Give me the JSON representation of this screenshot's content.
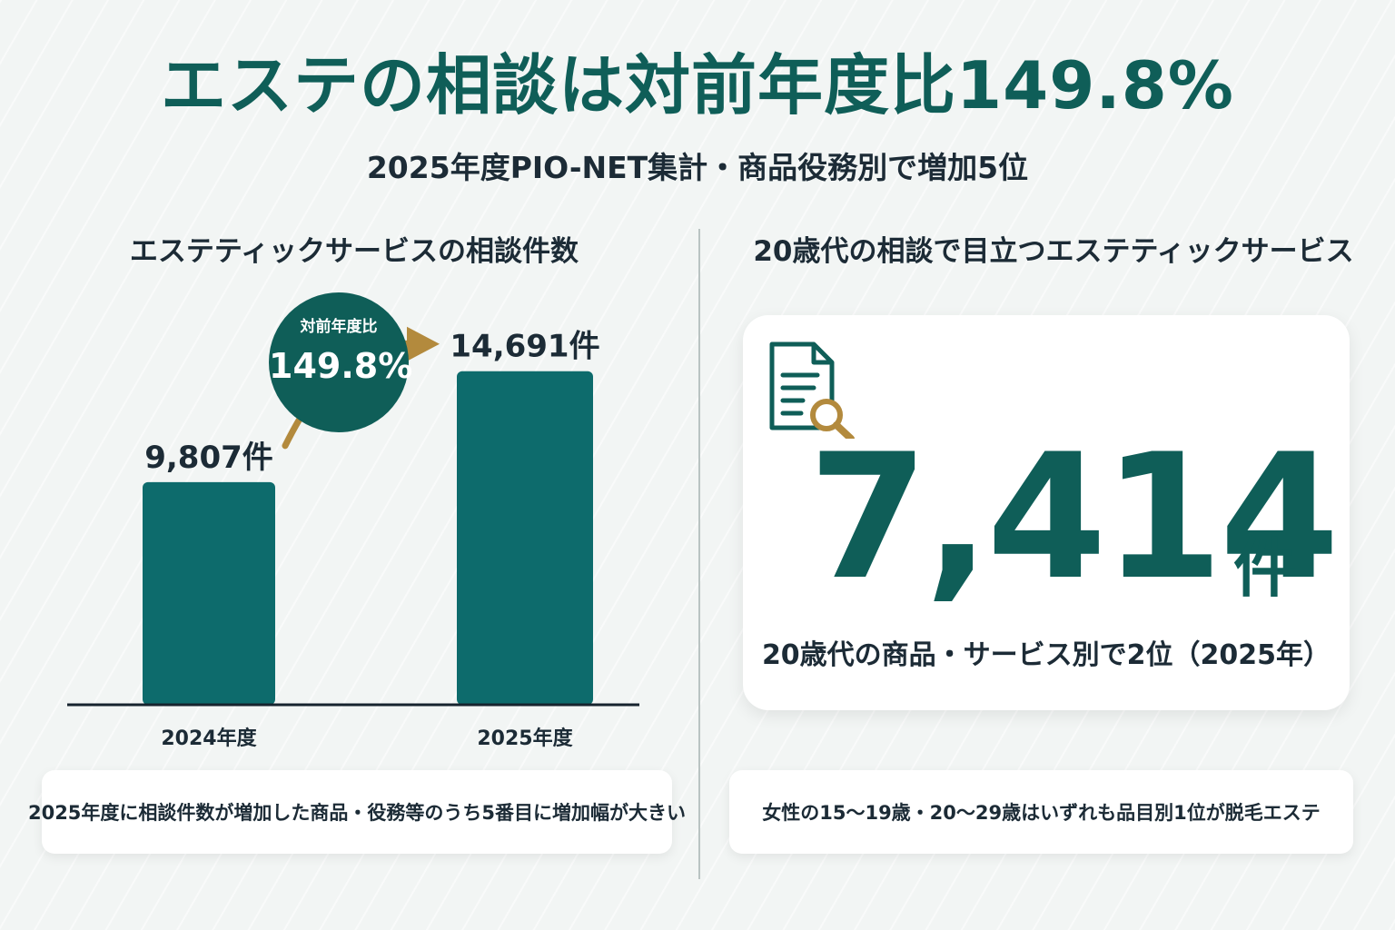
{
  "header": {
    "title": "エステの相談は対前年度比149.8%",
    "subtitle": "2025年度PIO-NET集計・商品役務別で増加5位"
  },
  "left": {
    "title": "エステティックサービスの相談件数",
    "badge": {
      "label": "対前年度比",
      "value": "149.8%"
    },
    "note": "2025年度に相談件数が増加した商品・役務等のうち5番目に増加幅が大きい"
  },
  "right": {
    "title": "20歳代の相談で目立つエステティックサービス",
    "stat": {
      "number": "7,414",
      "unit": "件"
    },
    "caption": "20歳代の商品・サービス別で2位（2025年）",
    "note": "女性の15～19歳・20～29歳はいずれも品目別1位が脱毛エステ",
    "icon": "document-search-icon"
  },
  "colors": {
    "primary": "#0f5e58",
    "bar": "#0d6b6c",
    "arrow": "#b38a3d",
    "text": "#1c2b36"
  },
  "chart_data": {
    "type": "bar",
    "title": "エステティックサービスの相談件数",
    "categories": [
      "2024年度",
      "2025年度"
    ],
    "values": [
      9807,
      14691
    ],
    "value_labels": [
      "9,807件",
      "14,691件"
    ],
    "ylim": [
      0,
      16800
    ],
    "grid": false,
    "annotation": "対前年度比149.8%"
  }
}
